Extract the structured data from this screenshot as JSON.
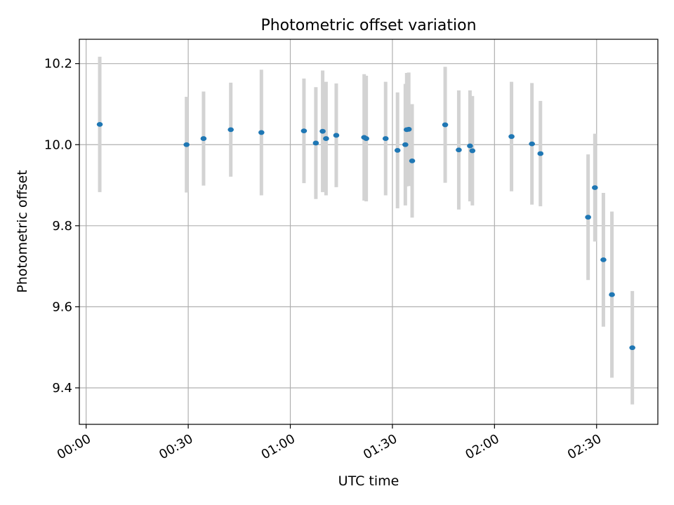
{
  "chart_data": {
    "type": "scatter",
    "title": "Photometric offset variation",
    "xlabel": "UTC time",
    "ylabel": "Photometric offset",
    "x_unit": "minutes",
    "xlim": [
      -2.0,
      168.0
    ],
    "ylim": [
      9.31,
      10.26
    ],
    "xticks": [
      0,
      30,
      60,
      90,
      120,
      150
    ],
    "xtick_labels": [
      "00:00",
      "00:30",
      "01:00",
      "01:30",
      "02:00",
      "02:30"
    ],
    "yticks": [
      9.4,
      9.6,
      9.8,
      10.0,
      10.2
    ],
    "ytick_labels": [
      "9.4",
      "9.6",
      "9.8",
      "10.0",
      "10.2"
    ],
    "grid": true,
    "series": [
      {
        "marker_color": "#1f77b4",
        "errorbar_color": "#d3d3d3",
        "points": [
          {
            "x": 4.0,
            "y": 10.05,
            "err": 0.167
          },
          {
            "x": 29.5,
            "y": 10.0,
            "err": 0.118
          },
          {
            "x": 34.5,
            "y": 10.015,
            "err": 0.116
          },
          {
            "x": 42.5,
            "y": 10.037,
            "err": 0.116
          },
          {
            "x": 51.5,
            "y": 10.03,
            "err": 0.155
          },
          {
            "x": 64.0,
            "y": 10.034,
            "err": 0.129
          },
          {
            "x": 67.5,
            "y": 10.004,
            "err": 0.138
          },
          {
            "x": 69.5,
            "y": 10.033,
            "err": 0.15
          },
          {
            "x": 70.5,
            "y": 10.015,
            "err": 0.14
          },
          {
            "x": 73.5,
            "y": 10.023,
            "err": 0.128
          },
          {
            "x": 81.7,
            "y": 10.018,
            "err": 0.156
          },
          {
            "x": 82.3,
            "y": 10.015,
            "err": 0.155
          },
          {
            "x": 88.0,
            "y": 10.015,
            "err": 0.14
          },
          {
            "x": 91.5,
            "y": 9.986,
            "err": 0.143
          },
          {
            "x": 93.8,
            "y": 10.0,
            "err": 0.15
          },
          {
            "x": 94.2,
            "y": 10.037,
            "err": 0.14
          },
          {
            "x": 94.8,
            "y": 10.038,
            "err": 0.14
          },
          {
            "x": 95.8,
            "y": 9.96,
            "err": 0.14
          },
          {
            "x": 105.5,
            "y": 10.049,
            "err": 0.143
          },
          {
            "x": 109.5,
            "y": 9.987,
            "err": 0.147
          },
          {
            "x": 112.8,
            "y": 9.997,
            "err": 0.137
          },
          {
            "x": 113.5,
            "y": 9.985,
            "err": 0.135
          },
          {
            "x": 125.0,
            "y": 10.02,
            "err": 0.135
          },
          {
            "x": 131.0,
            "y": 10.002,
            "err": 0.15
          },
          {
            "x": 133.5,
            "y": 9.978,
            "err": 0.13
          },
          {
            "x": 147.5,
            "y": 9.821,
            "err": 0.155
          },
          {
            "x": 149.5,
            "y": 9.894,
            "err": 0.133
          },
          {
            "x": 152.0,
            "y": 9.716,
            "err": 0.165
          },
          {
            "x": 154.5,
            "y": 9.63,
            "err": 0.205
          },
          {
            "x": 160.5,
            "y": 9.499,
            "err": 0.14
          }
        ]
      }
    ]
  }
}
